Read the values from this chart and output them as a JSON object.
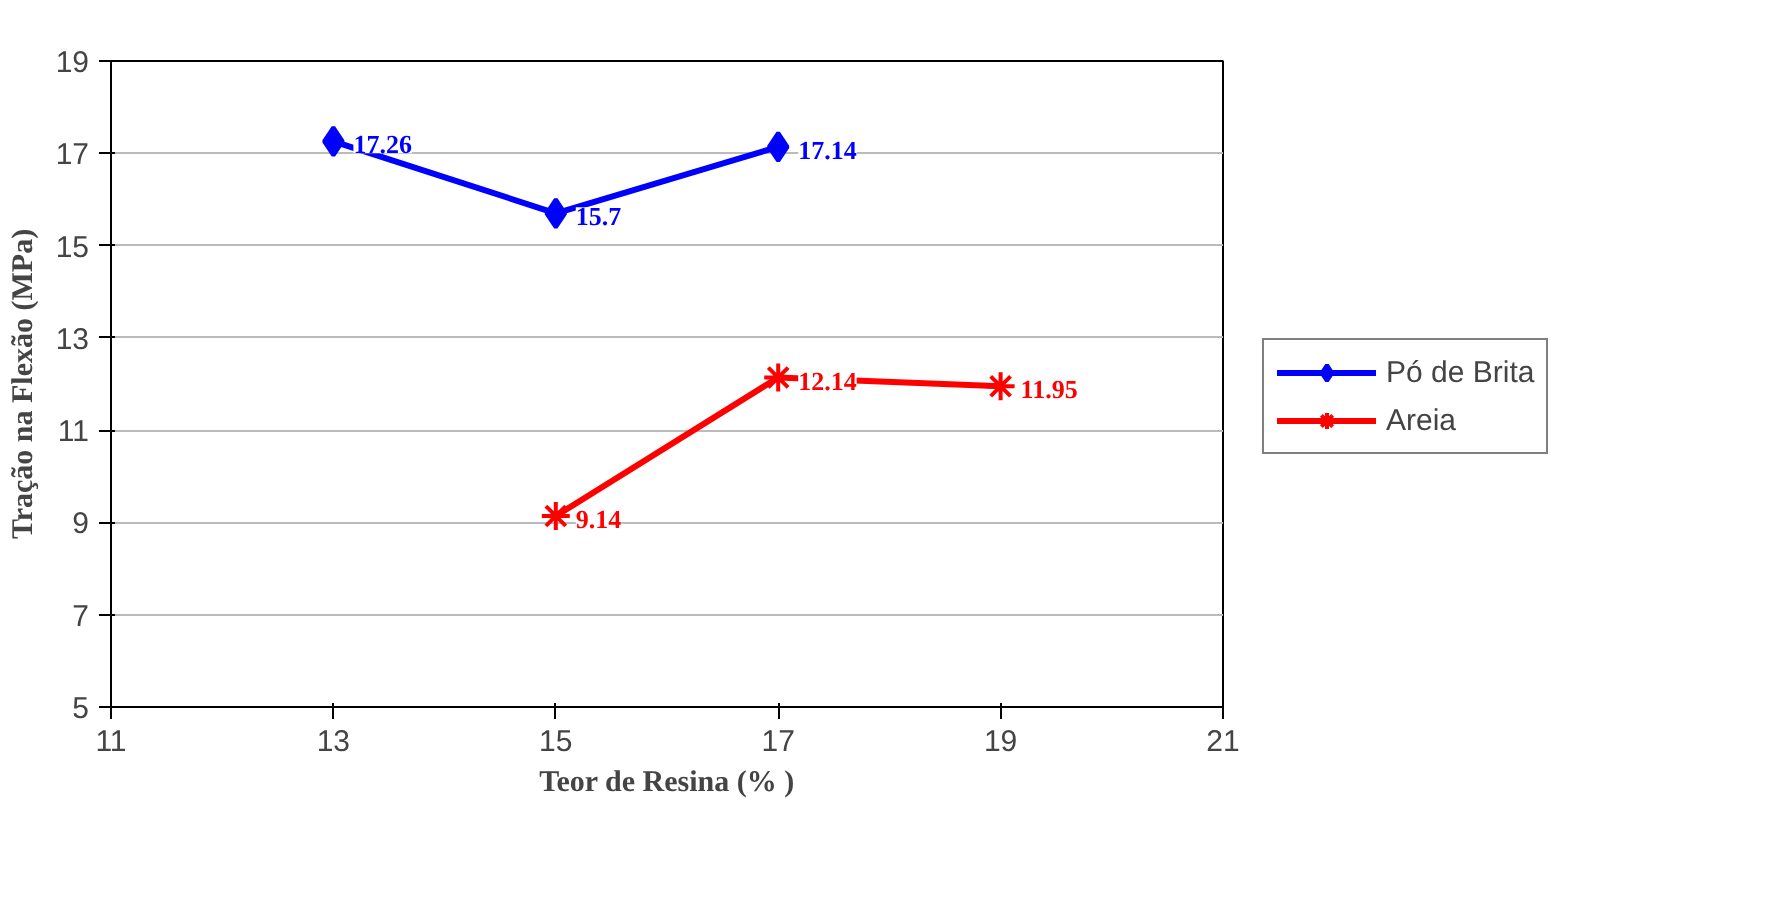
{
  "chart_data": {
    "type": "line",
    "xlabel": "Teor de Resina (% )",
    "ylabel": "Tração na Flexão (MPa)",
    "xlim": [
      11,
      21
    ],
    "xticks": [
      11,
      13,
      15,
      17,
      19,
      21
    ],
    "ylim": [
      5,
      19
    ],
    "yticks": [
      5,
      7,
      9,
      11,
      13,
      15,
      17,
      19
    ],
    "grid": "y",
    "legend": "right",
    "data_labels": true,
    "series": [
      {
        "name": "Pó de Brita",
        "color": "#0000ff",
        "marker": "diamond",
        "x": [
          13,
          15,
          17
        ],
        "values": [
          17.26,
          15.7,
          17.14
        ]
      },
      {
        "name": "Areia",
        "color": "#ff0000",
        "marker": "cross",
        "x": [
          15,
          17,
          19
        ],
        "values": [
          9.14,
          12.14,
          11.95
        ]
      }
    ]
  }
}
